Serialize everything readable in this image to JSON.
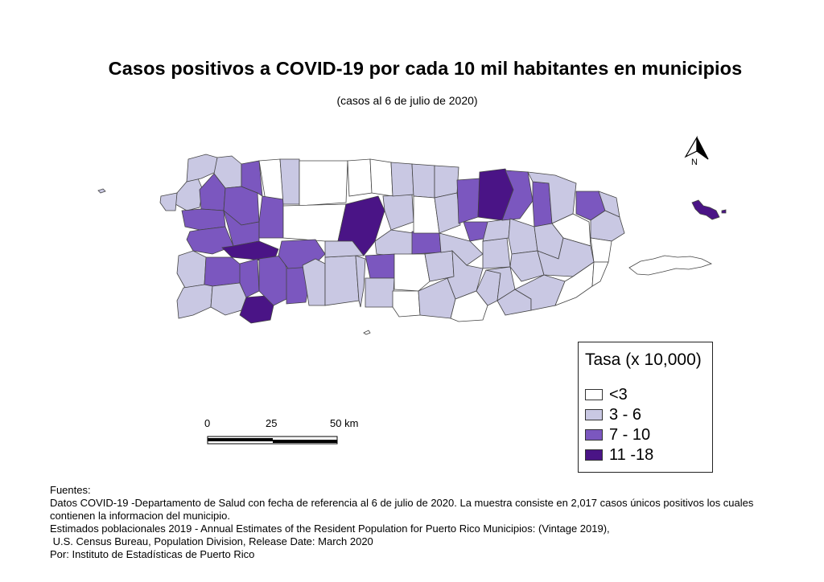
{
  "title": "Casos positivos a COVID-19 por cada 10 mil habitantes en municipios",
  "subtitle": "(casos al 6 de julio de 2020)",
  "north_label": "N",
  "legend": {
    "title": "Tasa (x 10,000)",
    "classes": [
      {
        "label": "<3",
        "color": "#ffffff"
      },
      {
        "label": "3 - 6",
        "color": "#c9c8e3"
      },
      {
        "label": "7 - 10",
        "color": "#7b57bf"
      },
      {
        "label": "11 -18",
        "color": "#4a1486"
      }
    ]
  },
  "scale_bar": {
    "ticks": [
      "0",
      "25",
      "50 km"
    ]
  },
  "sources": [
    "Fuentes:",
    "Datos COVID-19 -Departamento de Salud con fecha de referencia al 6 de julio de 2020. La muestra consiste en 2,017 casos únicos positivos los cuales contienen la informacion del municipio.",
    "Estimados poblacionales 2019 - Annual Estimates of the Resident Population for Puerto Rico Municipios: (Vintage 2019),",
    " U.S. Census Bureau, Population Division, Release Date: March 2020",
    "Por: Instituto de Estadísticas de Puerto Rico"
  ]
}
